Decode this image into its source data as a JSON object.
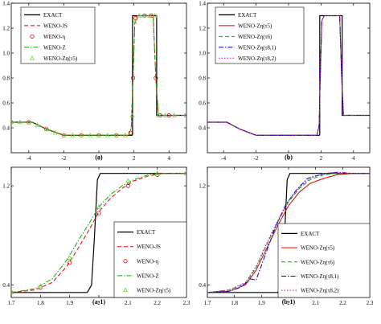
{
  "chart_data": [
    {
      "type": "line",
      "panel_label": "(a)",
      "xlim": [
        -5,
        5
      ],
      "ylim": [
        0.2,
        1.4
      ],
      "xticks": [
        -4,
        -2,
        0,
        2,
        4
      ],
      "yticks": [
        0.4,
        0.6,
        0.8,
        1.0,
        1.2,
        1.4
      ],
      "ytick_labels": [
        "0.4",
        "0.6",
        "0.8",
        "1.0",
        "1.2",
        "1.4"
      ],
      "legend_position": "top-left",
      "grid": false,
      "series": [
        {
          "name": "EXACT",
          "style": "solid",
          "color": "#000000",
          "x": [
            -5,
            -3.8,
            -3.0,
            -2.0,
            1.9,
            1.92,
            1.92,
            2.0,
            2.0,
            3.3,
            3.3,
            5.0
          ],
          "y": [
            0.445,
            0.445,
            0.39,
            0.34,
            0.34,
            0.35,
            1.3,
            1.3,
            1.3,
            1.3,
            0.5,
            0.5
          ]
        },
        {
          "name": "WENO-JS",
          "style": "dashed",
          "color": "#e00000",
          "x": [
            -5,
            -3.8,
            -3.0,
            -2.0,
            1.7,
            1.85,
            1.95,
            2.05,
            2.2,
            3.1,
            3.25,
            3.4,
            5.0
          ],
          "y": [
            0.445,
            0.445,
            0.39,
            0.34,
            0.34,
            0.4,
            0.8,
            1.24,
            1.3,
            1.3,
            0.8,
            0.5,
            0.5
          ]
        },
        {
          "name": "WENO-η",
          "style": "circle",
          "color": "#e00000",
          "x": [
            -5,
            -4,
            -3,
            -2,
            -1,
            0,
            1,
            1.8,
            1.95,
            2.1,
            2.6,
            3.0,
            3.25,
            3.5,
            4,
            5
          ],
          "y": [
            0.445,
            0.445,
            0.39,
            0.34,
            0.34,
            0.34,
            0.34,
            0.36,
            0.8,
            1.28,
            1.3,
            1.3,
            0.8,
            0.5,
            0.5,
            0.5
          ]
        },
        {
          "name": "WENO-Z",
          "style": "dashdot",
          "color": "#00b000",
          "x": [
            -5,
            -3.8,
            -3.0,
            -2.0,
            1.7,
            1.85,
            1.95,
            2.05,
            2.2,
            3.1,
            3.25,
            3.4,
            5.0
          ],
          "y": [
            0.445,
            0.445,
            0.39,
            0.34,
            0.34,
            0.4,
            0.8,
            1.24,
            1.3,
            1.3,
            0.8,
            0.5,
            0.5
          ]
        },
        {
          "name": "WENO-Zη(τ5)",
          "style": "triangle",
          "color": "#7cd34a",
          "x": [
            -5,
            -4.5,
            -4,
            -3.5,
            -3,
            -2.5,
            -2,
            -1.5,
            -1,
            -0.5,
            0,
            0.5,
            1,
            1.5,
            1.9,
            2.05,
            2.3,
            2.6,
            2.9,
            3.2,
            3.4,
            3.8,
            4.3,
            5
          ],
          "y": [
            0.445,
            0.445,
            0.445,
            0.42,
            0.39,
            0.36,
            0.34,
            0.34,
            0.34,
            0.34,
            0.34,
            0.34,
            0.34,
            0.34,
            0.5,
            1.25,
            1.3,
            1.3,
            1.3,
            1.3,
            0.5,
            0.5,
            0.5,
            0.5
          ]
        }
      ]
    },
    {
      "type": "line",
      "panel_label": "(b)",
      "xlim": [
        -5,
        5
      ],
      "ylim": [
        0.2,
        1.4
      ],
      "xticks": [
        -4,
        -2,
        0,
        2,
        4
      ],
      "yticks": [
        0.4,
        0.6,
        0.8,
        1.0,
        1.2,
        1.4
      ],
      "ytick_labels": [
        "0.4",
        "0.6",
        "0.8",
        "1.0",
        "1.2",
        "1.4"
      ],
      "legend_position": "top-left",
      "grid": false,
      "series": [
        {
          "name": "EXACT",
          "style": "solid",
          "color": "#000000",
          "x": [
            -5,
            -3.8,
            -3.0,
            -2.0,
            1.9,
            1.92,
            1.92,
            2.0,
            2.0,
            3.3,
            3.3,
            5.0
          ],
          "y": [
            0.445,
            0.445,
            0.39,
            0.34,
            0.34,
            0.35,
            1.3,
            1.3,
            1.3,
            1.3,
            0.5,
            0.5
          ]
        },
        {
          "name": "WENO-Zη(τ5)",
          "style": "solid",
          "color": "#e00000",
          "x": [
            -5,
            -3.8,
            -3.0,
            -2.0,
            1.75,
            1.88,
            1.96,
            2.05,
            2.2,
            3.15,
            3.27,
            3.38,
            5.0
          ],
          "y": [
            0.445,
            0.445,
            0.39,
            0.34,
            0.34,
            0.42,
            0.85,
            1.26,
            1.3,
            1.3,
            0.8,
            0.5,
            0.5
          ]
        },
        {
          "name": "WENO-Zη(τ6)",
          "style": "dashed",
          "color": "#00b000",
          "x": [
            -5,
            -3.8,
            -3.0,
            -2.0,
            1.75,
            1.88,
            1.96,
            2.05,
            2.2,
            3.15,
            3.27,
            3.38,
            5.0
          ],
          "y": [
            0.445,
            0.445,
            0.39,
            0.34,
            0.34,
            0.42,
            0.85,
            1.26,
            1.3,
            1.3,
            0.8,
            0.5,
            0.5
          ]
        },
        {
          "name": "WENO-Zη(τ8,1)",
          "style": "dashdot",
          "color": "#0000c8",
          "x": [
            -5,
            -3.8,
            -3.0,
            -2.0,
            1.75,
            1.88,
            1.96,
            2.05,
            2.2,
            3.15,
            3.27,
            3.38,
            5.0
          ],
          "y": [
            0.445,
            0.445,
            0.39,
            0.34,
            0.34,
            0.42,
            0.85,
            1.26,
            1.3,
            1.3,
            0.8,
            0.5,
            0.5
          ]
        },
        {
          "name": "WENO-Zη(τ8,2)",
          "style": "dotted",
          "color": "#d000d0",
          "x": [
            -5,
            -3.8,
            -3.0,
            -2.0,
            1.75,
            1.88,
            1.96,
            2.05,
            2.2,
            3.15,
            3.27,
            3.38,
            5.0
          ],
          "y": [
            0.445,
            0.445,
            0.39,
            0.34,
            0.34,
            0.42,
            0.85,
            1.26,
            1.3,
            1.3,
            0.8,
            0.5,
            0.5
          ]
        }
      ]
    },
    {
      "type": "line",
      "panel_label": "(a-1)",
      "xlim": [
        1.7,
        2.3
      ],
      "ylim": [
        0.3,
        1.35
      ],
      "xticks": [
        1.7,
        1.8,
        1.9,
        2.0,
        2.1,
        2.2,
        2.3
      ],
      "yticks": [
        0.4,
        1.2
      ],
      "ytick_labels": [
        "0.4",
        "1.2"
      ],
      "legend_position": "bottom-right",
      "grid": false,
      "series": [
        {
          "name": "EXACT",
          "style": "solid",
          "color": "#000000",
          "x": [
            1.7,
            1.96,
            1.975,
            1.985,
            1.995,
            2.005,
            2.3
          ],
          "y": [
            0.34,
            0.34,
            0.4,
            0.8,
            1.25,
            1.3,
            1.3
          ]
        },
        {
          "name": "WENO-JS",
          "style": "dashed",
          "color": "#e00000",
          "x": [
            1.7,
            1.78,
            1.84,
            1.89,
            1.93,
            1.97,
            2.0,
            2.04,
            2.08,
            2.12,
            2.17,
            2.22,
            2.3
          ],
          "y": [
            0.34,
            0.36,
            0.42,
            0.55,
            0.7,
            0.86,
            0.99,
            1.1,
            1.18,
            1.24,
            1.28,
            1.3,
            1.3
          ]
        },
        {
          "name": "WENO-η",
          "style": "circle",
          "color": "#e00000",
          "x": [
            1.7,
            1.8,
            1.9,
            2.0,
            2.1,
            2.2,
            2.3
          ],
          "y": [
            0.34,
            0.38,
            0.58,
            0.98,
            1.2,
            1.29,
            1.3
          ]
        },
        {
          "name": "WENO-Z",
          "style": "dashdot",
          "color": "#00b000",
          "x": [
            1.7,
            1.78,
            1.84,
            1.89,
            1.93,
            1.97,
            2.0,
            2.04,
            2.08,
            2.12,
            2.17,
            2.22,
            2.3
          ],
          "y": [
            0.34,
            0.37,
            0.45,
            0.6,
            0.76,
            0.91,
            1.03,
            1.13,
            1.2,
            1.25,
            1.29,
            1.3,
            1.3
          ]
        },
        {
          "name": "WENO-Zη(τ5)",
          "style": "triangle",
          "color": "#7cd34a",
          "x": [
            1.7,
            1.8,
            1.9,
            2.0,
            2.1,
            2.2,
            2.3
          ],
          "y": [
            0.34,
            0.39,
            0.62,
            1.03,
            1.24,
            1.3,
            1.3
          ]
        }
      ]
    },
    {
      "type": "line",
      "panel_label": "(b-1)",
      "xlim": [
        1.7,
        2.3
      ],
      "ylim": [
        0.3,
        1.35
      ],
      "xticks": [
        1.7,
        1.8,
        1.9,
        2.0,
        2.1,
        2.2,
        2.3
      ],
      "yticks": [
        0.4,
        1.2
      ],
      "ytick_labels": [
        "0.4",
        "1.2"
      ],
      "legend_position": "bottom-right",
      "grid": false,
      "series": [
        {
          "name": "EXACT",
          "style": "solid",
          "color": "#000000",
          "x": [
            1.7,
            1.96,
            1.975,
            1.985,
            1.995,
            2.005,
            2.3
          ],
          "y": [
            0.34,
            0.34,
            0.4,
            0.8,
            1.25,
            1.3,
            1.3
          ]
        },
        {
          "name": "WENO-Zη(τ5)",
          "style": "solid",
          "color": "#e00000",
          "x": [
            1.7,
            1.78,
            1.84,
            1.88,
            1.92,
            1.96,
            2.0,
            2.04,
            2.08,
            2.13,
            2.18,
            2.24,
            2.3
          ],
          "y": [
            0.34,
            0.35,
            0.4,
            0.52,
            0.7,
            0.88,
            1.04,
            1.15,
            1.22,
            1.26,
            1.29,
            1.3,
            1.3
          ]
        },
        {
          "name": "WENO-Zη(τ6)",
          "style": "dashed",
          "color": "#00b000",
          "x": [
            1.7,
            1.78,
            1.84,
            1.88,
            1.92,
            1.96,
            2.0,
            2.04,
            2.08,
            2.13,
            2.18,
            2.24,
            2.3
          ],
          "y": [
            0.34,
            0.36,
            0.41,
            0.54,
            0.73,
            0.91,
            1.07,
            1.18,
            1.25,
            1.29,
            1.3,
            1.3,
            1.3
          ]
        },
        {
          "name": "WENO-Zη(τ8,1)",
          "style": "dashdot",
          "color": "#0000c8",
          "x": [
            1.7,
            1.78,
            1.82,
            1.86,
            1.88,
            1.91,
            1.95,
            1.99,
            2.03,
            2.07,
            2.1,
            2.14,
            2.18,
            2.24,
            2.3
          ],
          "y": [
            0.34,
            0.35,
            0.38,
            0.45,
            0.44,
            0.62,
            0.86,
            1.05,
            1.17,
            1.26,
            1.28,
            1.3,
            1.31,
            1.3,
            1.3
          ]
        },
        {
          "name": "WENO-Zη(τ8,2)",
          "style": "dotted",
          "color": "#d000d0",
          "x": [
            1.7,
            1.78,
            1.84,
            1.88,
            1.92,
            1.96,
            2.0,
            2.04,
            2.08,
            2.13,
            2.18,
            2.24,
            2.3
          ],
          "y": [
            0.34,
            0.36,
            0.42,
            0.55,
            0.74,
            0.92,
            1.08,
            1.19,
            1.26,
            1.3,
            1.31,
            1.3,
            1.3
          ]
        }
      ]
    }
  ]
}
